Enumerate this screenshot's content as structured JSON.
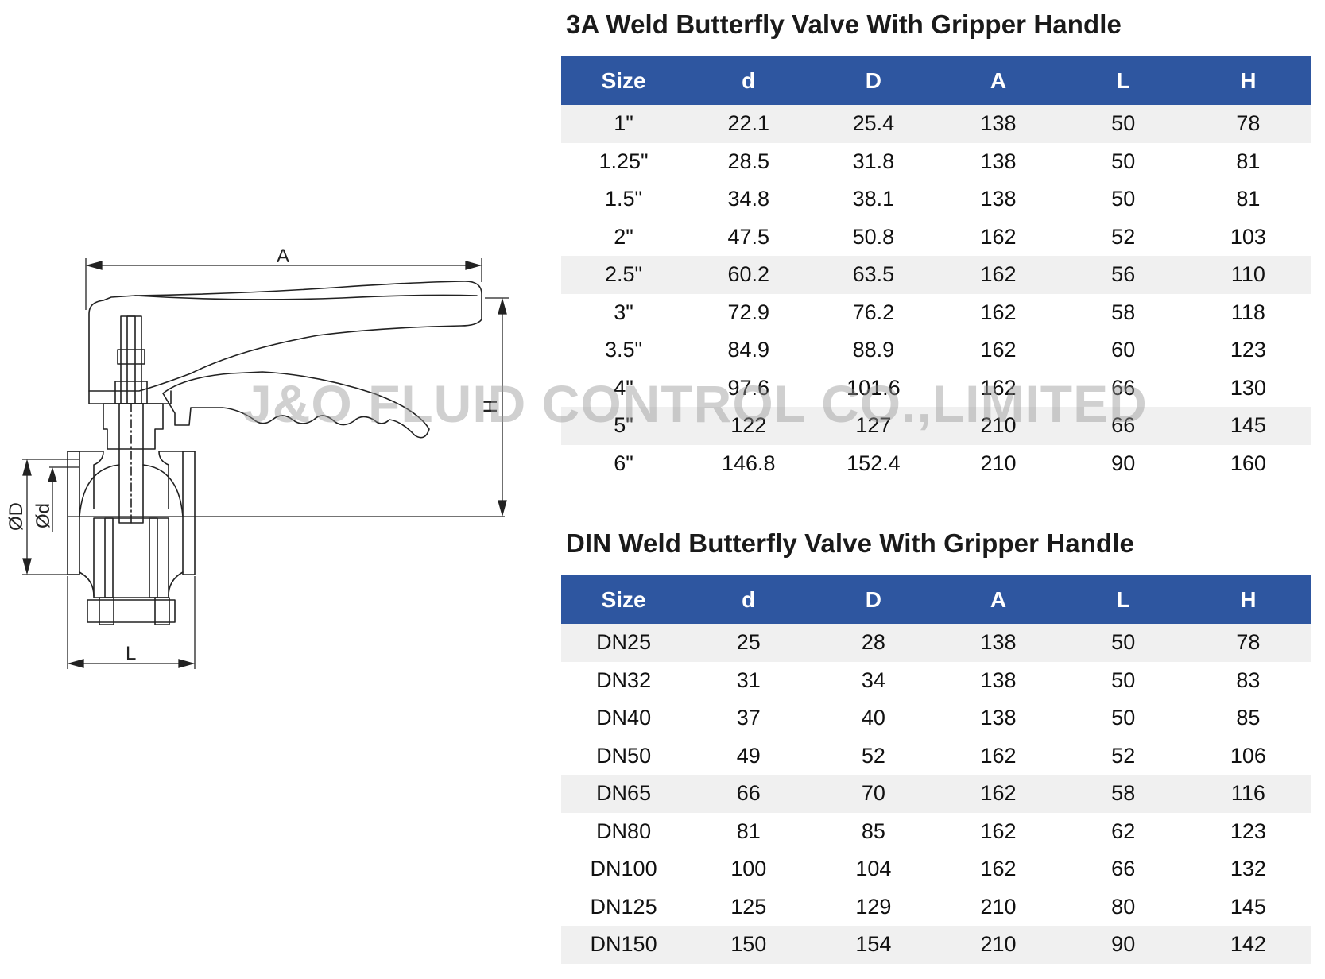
{
  "drawing": {
    "dim_A": "A",
    "dim_H": "H",
    "dim_L": "L",
    "dim_OD": "ØD",
    "dim_Od": "Ød"
  },
  "watermark": "J&O FLUID CONTROL CO.,LIMITED",
  "table_3a": {
    "title": "3A Weld Butterfly Valve With Gripper Handle",
    "headers": [
      "Size",
      "d",
      "D",
      "A",
      "L",
      "H"
    ],
    "rows": [
      [
        "1\"",
        "22.1",
        "25.4",
        "138",
        "50",
        "78"
      ],
      [
        "1.25\"",
        "28.5",
        "31.8",
        "138",
        "50",
        "81"
      ],
      [
        "1.5\"",
        "34.8",
        "38.1",
        "138",
        "50",
        "81"
      ],
      [
        "2\"",
        "47.5",
        "50.8",
        "162",
        "52",
        "103"
      ],
      [
        "2.5\"",
        "60.2",
        "63.5",
        "162",
        "56",
        "110"
      ],
      [
        "3\"",
        "72.9",
        "76.2",
        "162",
        "58",
        "118"
      ],
      [
        "3.5\"",
        "84.9",
        "88.9",
        "162",
        "60",
        "123"
      ],
      [
        "4\"",
        "97.6",
        "101.6",
        "162",
        "66",
        "130"
      ],
      [
        "5\"",
        "122",
        "127",
        "210",
        "66",
        "145"
      ],
      [
        "6\"",
        "146.8",
        "152.4",
        "210",
        "90",
        "160"
      ]
    ]
  },
  "table_din": {
    "title": "DIN Weld Butterfly Valve With Gripper Handle",
    "headers": [
      "Size",
      "d",
      "D",
      "A",
      "L",
      "H"
    ],
    "rows": [
      [
        "DN25",
        "25",
        "28",
        "138",
        "50",
        "78"
      ],
      [
        "DN32",
        "31",
        "34",
        "138",
        "50",
        "83"
      ],
      [
        "DN40",
        "37",
        "40",
        "138",
        "50",
        "85"
      ],
      [
        "DN50",
        "49",
        "52",
        "162",
        "52",
        "106"
      ],
      [
        "DN65",
        "66",
        "70",
        "162",
        "58",
        "116"
      ],
      [
        "DN80",
        "81",
        "85",
        "162",
        "62",
        "123"
      ],
      [
        "DN100",
        "100",
        "104",
        "162",
        "66",
        "132"
      ],
      [
        "DN125",
        "125",
        "129",
        "210",
        "80",
        "145"
      ],
      [
        "DN150",
        "150",
        "154",
        "210",
        "90",
        "142"
      ]
    ]
  }
}
